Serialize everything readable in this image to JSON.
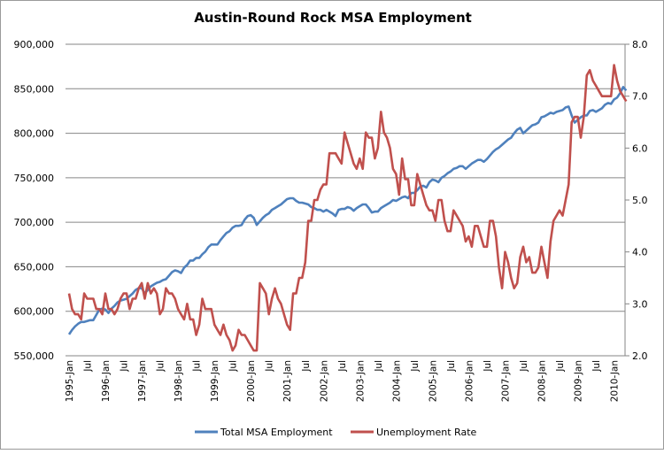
{
  "chart_data": {
    "type": "line",
    "title": "Austin-Round Rock MSA Employment",
    "xlabel": "",
    "ylabel": "",
    "y2label": "",
    "grid": true,
    "legend_placement": "bottom",
    "ylim": [
      550000,
      900000
    ],
    "y_ticks": [
      "550,000",
      "600,000",
      "650,000",
      "700,000",
      "750,000",
      "800,000",
      "850,000",
      "900,000"
    ],
    "y_tick_values": [
      550000,
      600000,
      650000,
      700000,
      750000,
      800000,
      850000,
      900000
    ],
    "y2lim": [
      2.0,
      8.0
    ],
    "y2_ticks": [
      "2.0",
      "3.0",
      "4.0",
      "5.0",
      "6.0",
      "7.0",
      "8.0"
    ],
    "y2_tick_values": [
      2,
      3,
      4,
      5,
      6,
      7,
      8
    ],
    "x_start": "1995-Jan",
    "x_end": "2010-May",
    "x_tick_labels": [
      "1995-Jan",
      "Jul",
      "1996-Jan",
      "Jul",
      "1997-Jan",
      "Jul",
      "1998-Jan",
      "Jul",
      "1999-Jan",
      "Jul",
      "2000-Jan",
      "Jul",
      "2001-Jan",
      "Jul",
      "2002-Jan",
      "Jul",
      "2003-Jan",
      "Jul",
      "2004-Jan",
      "Jul",
      "2005-Jan",
      "Jul",
      "2006-Jan",
      "Jul",
      "2007-Jan",
      "Jul",
      "2008-Jan",
      "Jul",
      "2009-Jan",
      "Jul",
      "2010-Jan"
    ],
    "series": [
      {
        "name": "Total MSA Employment",
        "axis": "left",
        "color": "#4F81BD",
        "values": [
          574000,
          579000,
          583000,
          586000,
          588000,
          588000,
          589000,
          590000,
          590000,
          596000,
          602000,
          603000,
          602000,
          598000,
          603000,
          606000,
          610000,
          612000,
          613000,
          614000,
          617000,
          620000,
          624000,
          626000,
          626000,
          620000,
          624000,
          628000,
          630000,
          632000,
          633000,
          635000,
          636000,
          640000,
          644000,
          646000,
          645000,
          643000,
          649000,
          652000,
          657000,
          657000,
          660000,
          660000,
          664000,
          667000,
          672000,
          675000,
          675000,
          675000,
          680000,
          684000,
          688000,
          690000,
          694000,
          696000,
          696000,
          697000,
          703000,
          707000,
          708000,
          705000,
          697000,
          701000,
          705000,
          708000,
          710000,
          714000,
          716000,
          718000,
          720000,
          723000,
          726000,
          727000,
          727000,
          724000,
          722000,
          722000,
          721000,
          720000,
          717000,
          716000,
          714000,
          714000,
          712000,
          714000,
          712000,
          710000,
          707000,
          714000,
          715000,
          715000,
          717000,
          716000,
          713000,
          716000,
          718000,
          720000,
          720000,
          716000,
          711000,
          712000,
          712000,
          716000,
          718000,
          720000,
          722000,
          725000,
          724000,
          726000,
          728000,
          729000,
          727000,
          733000,
          733000,
          736000,
          740000,
          741000,
          739000,
          745000,
          748000,
          747000,
          745000,
          750000,
          752000,
          755000,
          757000,
          760000,
          761000,
          763000,
          763000,
          760000,
          763000,
          766000,
          768000,
          770000,
          770000,
          768000,
          771000,
          775000,
          779000,
          782000,
          784000,
          787000,
          790000,
          793000,
          795000,
          800000,
          804000,
          806000,
          800000,
          803000,
          806000,
          809000,
          810000,
          812000,
          818000,
          819000,
          821000,
          823000,
          822000,
          824000,
          825000,
          826000,
          829000,
          830000,
          820000,
          812000,
          815000,
          818000,
          820000,
          820000,
          825000,
          826000,
          824000,
          826000,
          828000,
          832000,
          834000,
          833000,
          838000,
          840000,
          845000,
          852000,
          848000
        ]
      },
      {
        "name": "Unemployment Rate",
        "axis": "right",
        "color": "#C0504D",
        "values": [
          3.2,
          2.9,
          2.8,
          2.8,
          2.7,
          3.2,
          3.1,
          3.1,
          3.1,
          2.9,
          2.9,
          2.8,
          3.2,
          2.9,
          2.9,
          2.8,
          2.9,
          3.1,
          3.2,
          3.2,
          2.9,
          3.1,
          3.1,
          3.3,
          3.4,
          3.1,
          3.4,
          3.2,
          3.3,
          3.2,
          2.8,
          2.9,
          3.3,
          3.2,
          3.2,
          3.1,
          2.9,
          2.8,
          2.7,
          3.0,
          2.7,
          2.7,
          2.4,
          2.6,
          3.1,
          2.9,
          2.9,
          2.9,
          2.6,
          2.5,
          2.4,
          2.6,
          2.4,
          2.3,
          2.1,
          2.2,
          2.5,
          2.4,
          2.4,
          2.3,
          2.2,
          2.1,
          2.1,
          3.4,
          3.3,
          3.2,
          2.8,
          3.1,
          3.3,
          3.1,
          3.0,
          2.8,
          2.6,
          2.5,
          3.2,
          3.2,
          3.5,
          3.5,
          3.8,
          4.6,
          4.6,
          5.0,
          5.0,
          5.2,
          5.3,
          5.3,
          5.9,
          5.9,
          5.9,
          5.8,
          5.7,
          6.3,
          6.1,
          5.9,
          5.7,
          5.6,
          5.8,
          5.6,
          6.3,
          6.2,
          6.2,
          5.8,
          6.0,
          6.7,
          6.3,
          6.2,
          6.0,
          5.6,
          5.5,
          5.1,
          5.8,
          5.4,
          5.4,
          4.9,
          4.9,
          5.5,
          5.3,
          5.1,
          4.9,
          4.8,
          4.8,
          4.6,
          5.0,
          5.0,
          4.6,
          4.4,
          4.4,
          4.8,
          4.7,
          4.6,
          4.5,
          4.2,
          4.3,
          4.1,
          4.5,
          4.5,
          4.3,
          4.1,
          4.1,
          4.6,
          4.6,
          4.3,
          3.7,
          3.3,
          4.0,
          3.8,
          3.5,
          3.3,
          3.4,
          3.9,
          4.1,
          3.8,
          3.9,
          3.6,
          3.6,
          3.7,
          4.1,
          3.8,
          3.5,
          4.2,
          4.6,
          4.7,
          4.8,
          4.7,
          5.0,
          5.3,
          6.5,
          6.6,
          6.6,
          6.2,
          6.6,
          7.4,
          7.5,
          7.3,
          7.2,
          7.1,
          7.0,
          7.0,
          7.0,
          7.0,
          7.6,
          7.3,
          7.1,
          7.0,
          6.9
        ]
      }
    ]
  },
  "colors": {
    "gridline": "#868686",
    "axis": "#868686"
  }
}
